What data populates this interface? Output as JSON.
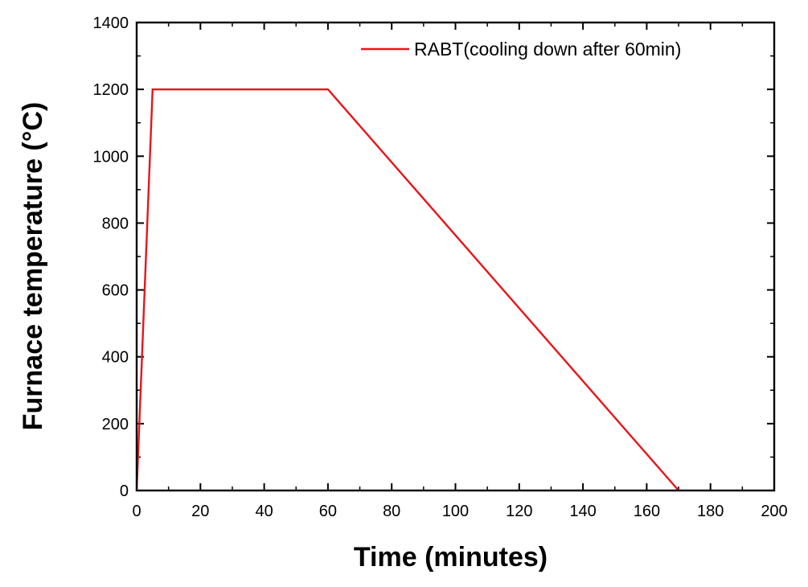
{
  "chart_data": {
    "type": "line",
    "title": "",
    "xlabel": "Time (minutes)",
    "ylabel": "Furnace temperature (°C)",
    "xlim": [
      0,
      200
    ],
    "ylim": [
      0,
      1400
    ],
    "xticks": [
      0,
      20,
      40,
      60,
      80,
      100,
      120,
      140,
      160,
      180,
      200
    ],
    "yticks": [
      0,
      200,
      400,
      600,
      800,
      1000,
      1200,
      1400
    ],
    "grid": false,
    "legend_position": "top-right",
    "series": [
      {
        "name": "RABT(cooling down after 60min)",
        "color": "#e8141b",
        "x": [
          0,
          5,
          60,
          170
        ],
        "y": [
          0,
          1200,
          1200,
          0
        ]
      }
    ]
  }
}
